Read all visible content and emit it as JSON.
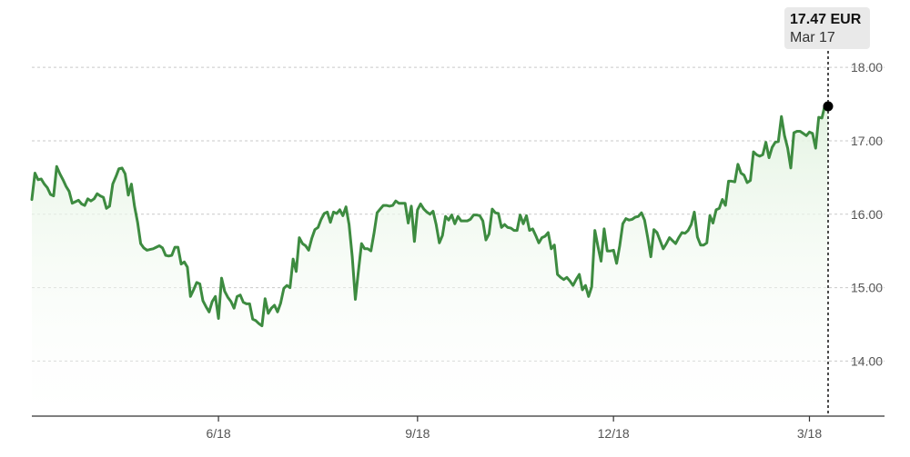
{
  "chart_data": {
    "type": "area",
    "currency": "EUR",
    "tooltip": {
      "price": "17.47 EUR",
      "date": "Mar 17"
    },
    "ylim": [
      13.25,
      18.2
    ],
    "yticks": [
      14,
      15,
      16,
      17,
      18
    ],
    "ytick_labels": [
      "14.00",
      "15.00",
      "16.00",
      "17.00",
      "18.00"
    ],
    "xticks": [
      {
        "label": "6/18",
        "index": 60
      },
      {
        "label": "9/18",
        "index": 124
      },
      {
        "label": "12/18",
        "index": 187
      },
      {
        "label": "3/18",
        "index": 250
      }
    ],
    "grid": true,
    "colors": {
      "line": "#3d8b40",
      "fill_top": "#e3f3e1",
      "fill_bottom": "#ffffff",
      "marker": "#000000"
    },
    "series": [
      {
        "values": [
          16.2,
          16.56,
          16.47,
          16.48,
          16.41,
          16.36,
          16.27,
          16.25,
          16.65,
          16.55,
          16.47,
          16.38,
          16.31,
          16.15,
          16.17,
          16.19,
          16.14,
          16.12,
          16.21,
          16.18,
          16.21,
          16.28,
          16.25,
          16.23,
          16.08,
          16.11,
          16.41,
          16.51,
          16.62,
          16.63,
          16.55,
          16.26,
          16.41,
          16.11,
          15.89,
          15.6,
          15.54,
          15.51,
          15.52,
          15.53,
          15.55,
          15.57,
          15.54,
          15.44,
          15.43,
          15.44,
          15.55,
          15.55,
          15.32,
          15.35,
          15.28,
          14.88,
          14.97,
          15.07,
          15.05,
          14.82,
          14.74,
          14.67,
          14.81,
          14.88,
          14.58,
          15.13,
          14.95,
          14.87,
          14.81,
          14.72,
          14.88,
          14.9,
          14.8,
          14.78,
          14.78,
          14.57,
          14.55,
          14.51,
          14.48,
          14.85,
          14.65,
          14.72,
          14.76,
          14.67,
          14.79,
          14.99,
          15.03,
          15.0,
          15.39,
          15.22,
          15.68,
          15.6,
          15.57,
          15.51,
          15.67,
          15.79,
          15.82,
          15.93,
          16.01,
          16.03,
          15.89,
          16.03,
          16.01,
          16.06,
          15.98,
          16.1,
          15.86,
          15.42,
          14.84,
          15.23,
          15.6,
          15.53,
          15.53,
          15.5,
          15.74,
          16.02,
          16.07,
          16.12,
          16.12,
          16.11,
          16.12,
          16.18,
          16.15,
          16.15,
          16.15,
          15.88,
          16.11,
          15.63,
          16.06,
          16.14,
          16.07,
          16.03,
          16.0,
          16.04,
          15.86,
          15.61,
          15.71,
          15.97,
          15.92,
          15.99,
          15.87,
          15.97,
          15.91,
          15.91,
          15.91,
          15.93,
          15.99,
          15.99,
          15.98,
          15.91,
          15.65,
          15.73,
          16.07,
          16.02,
          16.01,
          15.82,
          15.86,
          15.82,
          15.81,
          15.78,
          15.78,
          15.99,
          15.87,
          15.98,
          15.78,
          15.8,
          15.71,
          15.61,
          15.68,
          15.7,
          15.75,
          15.53,
          15.58,
          15.18,
          15.14,
          15.11,
          15.14,
          15.09,
          15.03,
          15.11,
          15.18,
          14.97,
          15.03,
          14.88,
          15.01,
          15.78,
          15.56,
          15.36,
          15.8,
          15.5,
          15.5,
          15.51,
          15.33,
          15.57,
          15.87,
          15.94,
          15.92,
          15.93,
          15.96,
          15.97,
          16.02,
          15.92,
          15.68,
          15.42,
          15.79,
          15.75,
          15.64,
          15.53,
          15.6,
          15.68,
          15.64,
          15.6,
          15.68,
          15.75,
          15.74,
          15.78,
          15.86,
          16.03,
          15.69,
          15.58,
          15.58,
          15.61,
          15.98,
          15.88,
          16.06,
          16.08,
          16.2,
          16.12,
          16.45,
          16.45,
          16.44,
          16.68,
          16.56,
          16.53,
          16.43,
          16.46,
          16.85,
          16.81,
          16.79,
          16.81,
          16.98,
          16.77,
          16.91,
          16.98,
          16.99,
          17.33,
          17.07,
          16.9,
          16.63,
          17.11,
          17.13,
          17.13,
          17.1,
          17.07,
          17.12,
          17.1,
          16.9,
          17.32,
          17.31,
          17.49,
          17.47
        ]
      }
    ]
  }
}
